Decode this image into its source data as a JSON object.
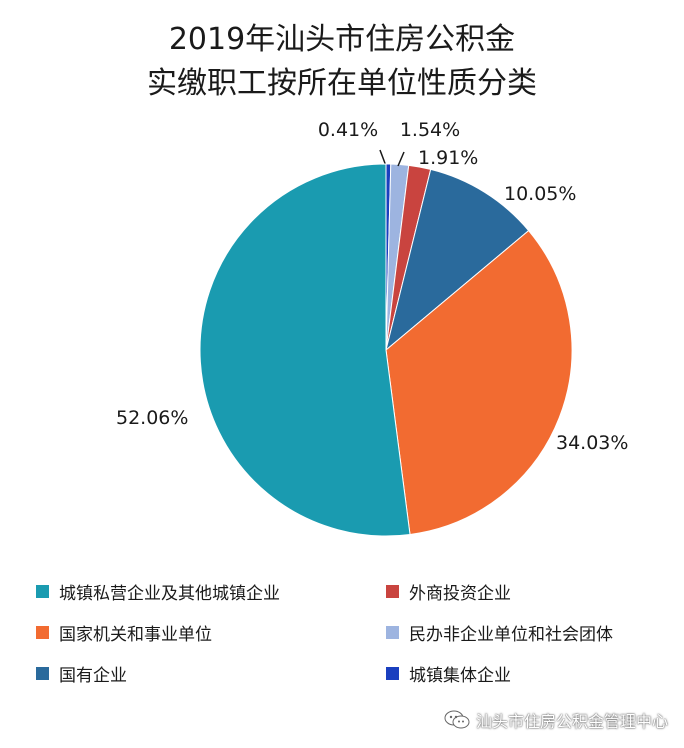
{
  "chart_data": {
    "type": "pie",
    "title": "2019年汕头市住房公积金",
    "subtitle": "实缴职工按所在单位性质分类",
    "slices": [
      {
        "label": "城镇集体企业",
        "value": 0.41,
        "display": "0.41%",
        "color": "#1a3fbf"
      },
      {
        "label": "民办非企业单位和社会团体",
        "value": 1.54,
        "display": "1.54%",
        "color": "#9db4e0"
      },
      {
        "label": "外商投资企业",
        "value": 1.91,
        "display": "1.91%",
        "color": "#c9443f"
      },
      {
        "label": "国有企业",
        "value": 10.05,
        "display": "10.05%",
        "color": "#2a6a9c"
      },
      {
        "label": "国家机关和事业单位",
        "value": 34.03,
        "display": "34.03%",
        "color": "#f26b31"
      },
      {
        "label": "城镇私营企业及其他城镇企业",
        "value": 52.06,
        "display": "52.06%",
        "color": "#1a9bb0"
      }
    ],
    "legend": [
      {
        "label": "城镇私营企业及其他城镇企业",
        "color": "#1a9bb0"
      },
      {
        "label": "外商投资企业",
        "color": "#c9443f"
      },
      {
        "label": "国家机关和事业单位",
        "color": "#f26b31"
      },
      {
        "label": "民办非企业单位和社会团体",
        "color": "#9db4e0"
      },
      {
        "label": "国有企业",
        "color": "#2a6a9c"
      },
      {
        "label": "城镇集体企业",
        "color": "#1a3fbf"
      }
    ],
    "legend_placement": "bottom"
  },
  "watermark": {
    "text": "汕头市住房公积金管理中心",
    "icon": "wechat-icon"
  }
}
